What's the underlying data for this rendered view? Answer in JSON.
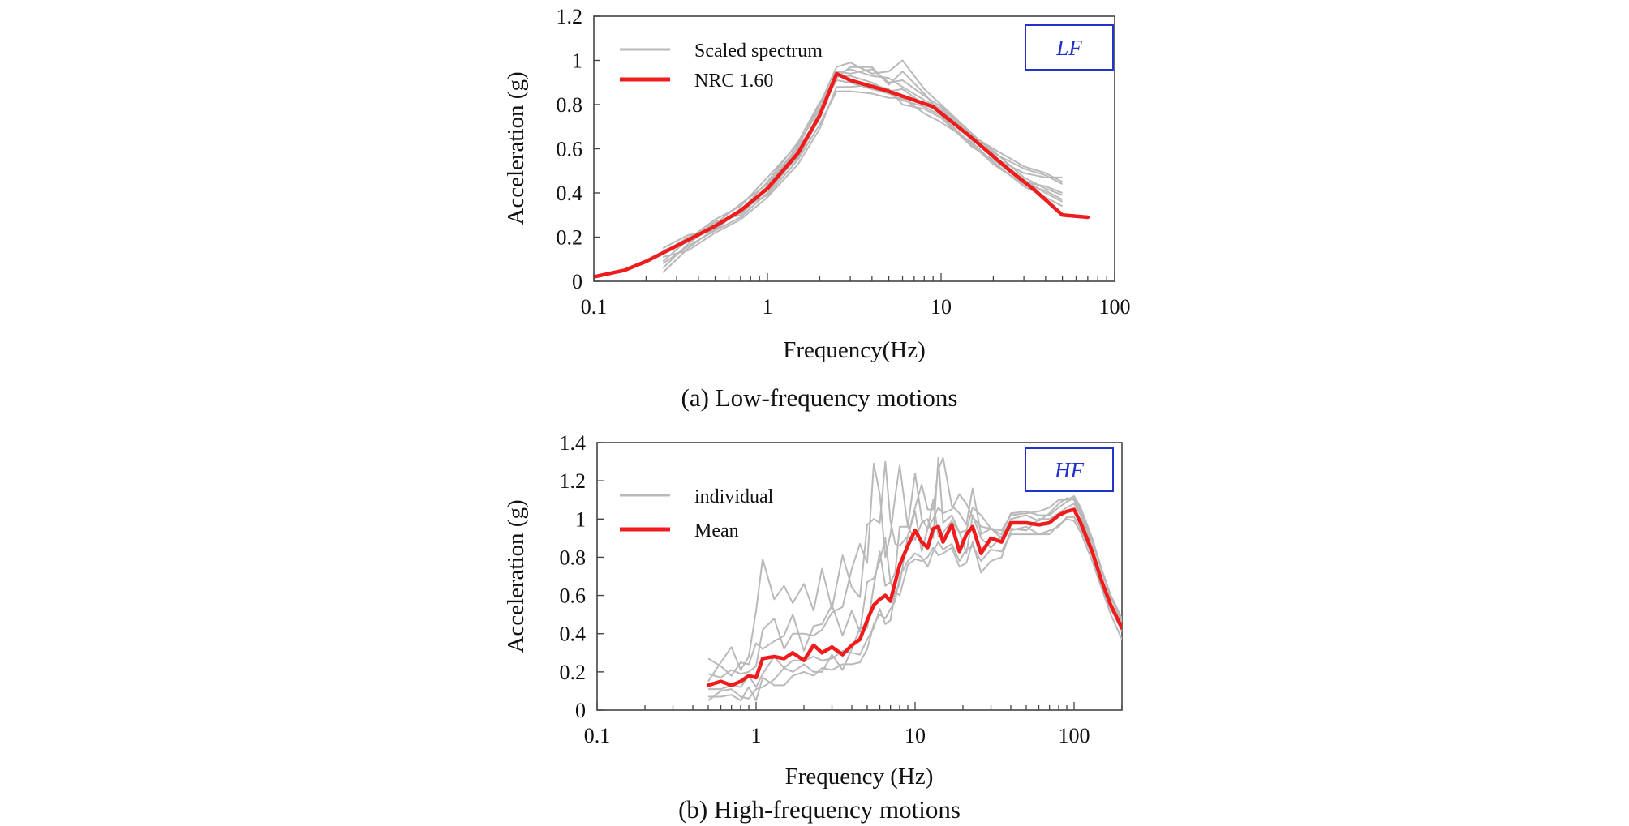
{
  "chart_data": [
    {
      "type": "line",
      "badge": "LF",
      "caption": "(a) Low-frequency motions",
      "xlabel": "Frequency(Hz)",
      "ylabel": "Acceleration (g)",
      "xscale": "log",
      "xlim": [
        0.1,
        100
      ],
      "ylim": [
        0,
        1.2
      ],
      "x_ticks": [
        0.1,
        1,
        10,
        100
      ],
      "x_tick_labels": [
        "0.1",
        "1",
        "10",
        "100"
      ],
      "y_ticks": [
        0,
        0.2,
        0.4,
        0.6,
        0.8,
        1,
        1.2
      ],
      "y_tick_labels": [
        "0",
        "0.2",
        "0.4",
        "0.6",
        "0.8",
        "1",
        "1.2"
      ],
      "grid": false,
      "legend_position": "top-left",
      "legend": [
        {
          "label": "Scaled spectrum",
          "color": "#b9b9b9"
        },
        {
          "label": "NRC 1.60",
          "color": "#ee1c1c"
        }
      ],
      "series": [
        {
          "name": "NRC 1.60",
          "color": "#ee1c1c",
          "x": [
            0.1,
            0.15,
            0.2,
            0.3,
            0.5,
            0.7,
            1.0,
            1.5,
            2.0,
            2.5,
            3.0,
            5.0,
            9.0,
            15.0,
            25.0,
            35.0,
            50.0,
            70.0
          ],
          "y": [
            0.02,
            0.05,
            0.09,
            0.16,
            0.25,
            0.32,
            0.42,
            0.58,
            0.75,
            0.94,
            0.91,
            0.86,
            0.79,
            0.65,
            0.5,
            0.41,
            0.3,
            0.29
          ]
        },
        {
          "name": "Scaled spectrum",
          "color": "#b9b9b9",
          "individual": true,
          "x": [
            0.25,
            0.35,
            0.5,
            0.7,
            1.0,
            1.5,
            2.0,
            2.5,
            3.0,
            4.0,
            5.0,
            6.0,
            8.0,
            10.0,
            15.0,
            20.0,
            30.0,
            40.0,
            50.0
          ],
          "y_base": [
            0.13,
            0.19,
            0.25,
            0.32,
            0.42,
            0.58,
            0.75,
            0.91,
            0.92,
            0.9,
            0.87,
            0.86,
            0.81,
            0.76,
            0.64,
            0.56,
            0.47,
            0.43,
            0.41
          ],
          "offsets": [
            [
              0.0,
              0.01,
              0.0,
              -0.01,
              0.01,
              0.02,
              0.0,
              0.03,
              0.04,
              0.03,
              0.05,
              0.02,
              0.01,
              0.02,
              0.01,
              0.0,
              0.02,
              0.04,
              0.06
            ],
            [
              -0.05,
              -0.03,
              -0.02,
              -0.03,
              -0.02,
              -0.01,
              0.02,
              0.0,
              -0.02,
              -0.03,
              -0.02,
              -0.04,
              -0.02,
              -0.01,
              -0.02,
              -0.03,
              -0.03,
              -0.02,
              -0.04
            ],
            [
              -0.09,
              -0.04,
              -0.01,
              0.0,
              0.03,
              0.05,
              0.06,
              0.01,
              0.05,
              0.07,
              0.02,
              0.09,
              0.04,
              0.0,
              0.02,
              0.03,
              0.0,
              -0.01,
              -0.02
            ],
            [
              0.02,
              0.02,
              -0.02,
              0.01,
              -0.03,
              -0.03,
              -0.04,
              -0.05,
              -0.06,
              -0.05,
              -0.04,
              -0.03,
              -0.05,
              -0.04,
              -0.01,
              -0.02,
              -0.04,
              -0.05,
              -0.07
            ],
            [
              -0.07,
              -0.02,
              0.01,
              0.03,
              0.02,
              0.03,
              0.05,
              0.06,
              0.07,
              0.04,
              0.08,
              0.14,
              0.06,
              0.04,
              0.03,
              0.02,
              0.04,
              0.05,
              0.03
            ],
            [
              0.01,
              -0.01,
              0.02,
              -0.02,
              0.0,
              -0.02,
              -0.01,
              0.02,
              0.01,
              0.0,
              -0.01,
              0.01,
              -0.01,
              0.01,
              0.0,
              0.01,
              -0.01,
              -0.03,
              -0.05
            ],
            [
              -0.04,
              0.0,
              0.03,
              0.02,
              0.05,
              0.04,
              0.03,
              0.04,
              0.02,
              0.06,
              0.03,
              0.05,
              0.03,
              0.03,
              0.02,
              0.04,
              0.05,
              0.06,
              0.04
            ],
            [
              -0.02,
              -0.05,
              -0.03,
              -0.04,
              -0.04,
              -0.05,
              -0.06,
              -0.03,
              -0.04,
              -0.01,
              0.0,
              -0.06,
              -0.03,
              -0.02,
              -0.03,
              -0.01,
              -0.02,
              0.0,
              -0.01
            ]
          ]
        }
      ]
    },
    {
      "type": "line",
      "badge": "HF",
      "caption": "(b) High-frequency motions",
      "xlabel": "Frequency (Hz)",
      "ylabel": "Acceleration (g)",
      "xscale": "log",
      "xlim": [
        0.1,
        200
      ],
      "ylim": [
        0,
        1.4
      ],
      "x_ticks": [
        0.1,
        1,
        10,
        100
      ],
      "x_tick_labels": [
        "0.1",
        "1",
        "10",
        "100"
      ],
      "y_ticks": [
        0,
        0.2,
        0.4,
        0.6,
        0.8,
        1,
        1.2,
        1.4
      ],
      "y_tick_labels": [
        "0",
        "0.2",
        "0.4",
        "0.6",
        "0.8",
        "1",
        "1.2",
        "1.4"
      ],
      "grid": false,
      "legend_position": "top-left",
      "legend": [
        {
          "label": "individual",
          "color": "#b9b9b9"
        },
        {
          "label": "Mean",
          "color": "#ee1c1c"
        }
      ],
      "series": [
        {
          "name": "Mean",
          "color": "#ee1c1c",
          "x": [
            0.5,
            0.6,
            0.7,
            0.8,
            0.9,
            1.0,
            1.1,
            1.3,
            1.5,
            1.7,
            2.0,
            2.3,
            2.6,
            3.0,
            3.5,
            4.0,
            4.5,
            5.0,
            5.5,
            6.0,
            6.5,
            7.0,
            7.5,
            8.0,
            9.0,
            10.0,
            11.0,
            12.0,
            13.0,
            14.0,
            15.0,
            17.0,
            19.0,
            21.0,
            23.0,
            26.0,
            30.0,
            35.0,
            40.0,
            50.0,
            60.0,
            70.0,
            80.0,
            90.0,
            100.0,
            110.0,
            130.0,
            150.0,
            170.0,
            200.0
          ],
          "y": [
            0.13,
            0.15,
            0.13,
            0.15,
            0.18,
            0.17,
            0.27,
            0.28,
            0.27,
            0.3,
            0.26,
            0.34,
            0.3,
            0.33,
            0.29,
            0.34,
            0.37,
            0.47,
            0.55,
            0.58,
            0.6,
            0.57,
            0.67,
            0.76,
            0.86,
            0.94,
            0.88,
            0.85,
            0.95,
            0.96,
            0.88,
            0.97,
            0.83,
            0.92,
            0.96,
            0.82,
            0.9,
            0.88,
            0.98,
            0.98,
            0.97,
            0.98,
            1.02,
            1.04,
            1.05,
            0.98,
            0.83,
            0.67,
            0.55,
            0.43
          ]
        },
        {
          "name": "individual",
          "color": "#b9b9b9",
          "individual": true,
          "x": [
            0.5,
            0.6,
            0.7,
            0.8,
            0.9,
            1.0,
            1.1,
            1.3,
            1.5,
            1.7,
            2.0,
            2.3,
            2.6,
            3.0,
            3.5,
            4.0,
            4.5,
            5.0,
            5.5,
            6.0,
            6.5,
            7.0,
            7.5,
            8.0,
            9.0,
            10.0,
            11.0,
            12.0,
            13.0,
            14.0,
            15.0,
            17.0,
            19.0,
            21.0,
            23.0,
            26.0,
            30.0,
            35.0,
            40.0,
            50.0,
            60.0,
            70.0,
            80.0,
            90.0,
            100.0,
            110.0,
            130.0,
            150.0,
            170.0,
            200.0
          ],
          "y_base": [
            0.13,
            0.15,
            0.13,
            0.15,
            0.18,
            0.17,
            0.27,
            0.28,
            0.27,
            0.3,
            0.26,
            0.34,
            0.3,
            0.33,
            0.29,
            0.34,
            0.37,
            0.47,
            0.55,
            0.58,
            0.6,
            0.57,
            0.67,
            0.76,
            0.86,
            0.94,
            0.88,
            0.85,
            0.95,
            0.96,
            0.88,
            0.97,
            0.83,
            0.92,
            0.96,
            0.82,
            0.9,
            0.88,
            0.98,
            0.98,
            0.97,
            0.98,
            1.02,
            1.04,
            1.05,
            0.98,
            0.83,
            0.67,
            0.55,
            0.43
          ],
          "offsets": [
            [
              0.02,
              0.1,
              0.2,
              0.06,
              0.1,
              0.35,
              0.52,
              0.3,
              0.38,
              0.26,
              0.4,
              0.18,
              0.44,
              0.2,
              0.52,
              0.3,
              0.22,
              0.5,
              0.45,
              0.4,
              0.7,
              0.42,
              0.2,
              0.1,
              0.05,
              0.12,
              0.3,
              0.2,
              0.1,
              0.3,
              0.44,
              0.1,
              0.2,
              0.05,
              0.2,
              0.1,
              0.05,
              0.04,
              0.05,
              0.06,
              0.05,
              0.04,
              0.04,
              0.05,
              0.06,
              0.06,
              0.06,
              0.06,
              0.05,
              0.05
            ],
            [
              -0.08,
              -0.05,
              -0.02,
              -0.08,
              -0.12,
              -0.06,
              -0.15,
              -0.12,
              -0.05,
              -0.1,
              -0.02,
              -0.14,
              -0.1,
              -0.04,
              -0.08,
              -0.02,
              0.06,
              -0.04,
              0.1,
              0.25,
              0.05,
              0.1,
              -0.06,
              -0.1,
              0.05,
              0.1,
              -0.05,
              0.1,
              0.15,
              -0.05,
              0.05,
              0.02,
              0.1,
              -0.1,
              0.06,
              0.08,
              -0.05,
              0.03,
              -0.03,
              -0.04,
              0.03,
              0.02,
              0.01,
              0.02,
              0.03,
              0.04,
              0.05,
              0.05,
              0.04,
              0.03
            ],
            [
              0.14,
              0.08,
              0.05,
              0.1,
              0.06,
              0.18,
              0.05,
              0.08,
              0.12,
              0.2,
              0.05,
              0.1,
              0.15,
              0.22,
              0.1,
              0.18,
              0.04,
              0.2,
              0.14,
              0.2,
              0.3,
              0.1,
              0.05,
              0.2,
              0.1,
              -0.05,
              0.1,
              0.15,
              -0.05,
              0.36,
              0.1,
              0.05,
              0.1,
              0.02,
              0.1,
              0.2,
              0.05,
              0.02,
              0.02,
              0.04,
              0.02,
              0.05,
              0.06,
              0.07,
              0.05,
              0.04,
              0.02,
              0.0,
              -0.01,
              -0.02
            ],
            [
              -0.06,
              -0.08,
              -0.05,
              -0.1,
              -0.06,
              -0.12,
              -0.1,
              -0.15,
              -0.14,
              -0.12,
              -0.06,
              -0.16,
              -0.08,
              -0.12,
              -0.05,
              -0.1,
              -0.12,
              -0.15,
              -0.1,
              -0.08,
              -0.12,
              -0.04,
              -0.1,
              -0.06,
              -0.08,
              -0.12,
              -0.08,
              -0.1,
              -0.12,
              -0.08,
              -0.04,
              -0.1,
              -0.05,
              -0.08,
              -0.1,
              -0.04,
              -0.06,
              -0.05,
              -0.06,
              -0.06,
              -0.05,
              -0.06,
              -0.05,
              -0.04,
              -0.06,
              -0.05,
              -0.05,
              -0.04,
              -0.05,
              -0.06
            ],
            [
              0.06,
              0.02,
              0.08,
              0.04,
              0.02,
              0.06,
              0.15,
              0.2,
              0.05,
              0.1,
              0.14,
              0.05,
              0.12,
              0.18,
              0.25,
              0.4,
              0.5,
              0.3,
              0.74,
              0.55,
              0.2,
              0.35,
              0.45,
              0.52,
              0.1,
              0.3,
              0.12,
              0.1,
              0.05,
              0.1,
              0.15,
              0.08,
              0.3,
              0.16,
              0.05,
              0.14,
              0.05,
              0.06,
              0.04,
              0.05,
              0.07,
              0.08,
              0.08,
              0.06,
              0.07,
              0.08,
              0.07,
              0.06,
              0.05,
              0.04
            ],
            [
              -0.02,
              -0.04,
              0.0,
              -0.03,
              0.0,
              -0.05,
              -0.08,
              0.0,
              -0.05,
              -0.04,
              0.0,
              -0.06,
              -0.04,
              -0.06,
              0.02,
              -0.04,
              -0.08,
              -0.1,
              -0.12,
              -0.05,
              -0.15,
              -0.1,
              -0.05,
              -0.16,
              -0.1,
              -0.15,
              -0.1,
              -0.05,
              -0.1,
              -0.15,
              -0.06,
              -0.12,
              -0.08,
              -0.15,
              -0.08,
              -0.1,
              -0.12,
              -0.08,
              -0.04,
              -0.02,
              -0.05,
              -0.04,
              -0.06,
              -0.03,
              -0.04,
              -0.03,
              -0.02,
              -0.03,
              -0.02,
              -0.01
            ]
          ]
        }
      ]
    }
  ]
}
